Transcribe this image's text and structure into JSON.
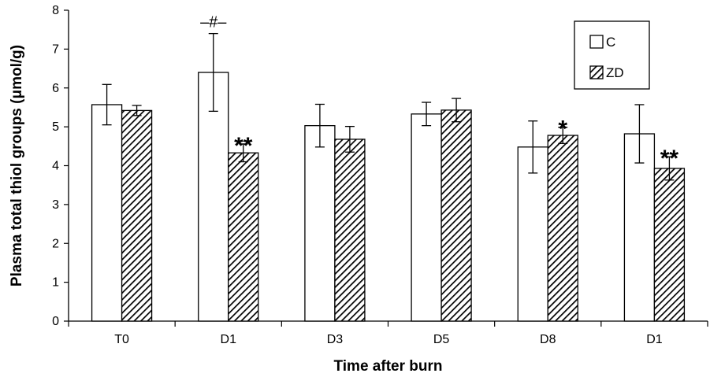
{
  "chart_data": {
    "type": "bar",
    "xlabel": "Time after burn",
    "ylabel": "Plasma total thiol groups  (μmol/g)",
    "ylim": [
      0,
      8
    ],
    "yticks": [
      "0",
      "1",
      "2",
      "3",
      "4",
      "5",
      "6",
      "7",
      "8"
    ],
    "categories": [
      "T0",
      "D1",
      "D3",
      "D5",
      "D8",
      "D1"
    ],
    "series": [
      {
        "name": "C",
        "fill": "white",
        "values": [
          5.57,
          6.4,
          5.03,
          5.33,
          4.48,
          4.82
        ],
        "errors": [
          0.52,
          1.0,
          0.55,
          0.3,
          0.67,
          0.75
        ]
      },
      {
        "name": "ZD",
        "fill": "hatched",
        "values": [
          5.42,
          4.33,
          4.68,
          5.43,
          4.78,
          3.93
        ],
        "errors": [
          0.13,
          0.23,
          0.33,
          0.3,
          0.21,
          0.3
        ]
      }
    ],
    "annotations": [
      {
        "category_index": 1,
        "series_index": 0,
        "text": "–#–"
      },
      {
        "category_index": 1,
        "series_index": 1,
        "text": "**"
      },
      {
        "category_index": 4,
        "series_index": 1,
        "text": "*"
      },
      {
        "category_index": 5,
        "series_index": 1,
        "text": "**"
      }
    ],
    "legend": {
      "position": "top-right",
      "labels": [
        "C",
        "ZD"
      ]
    },
    "grid": false,
    "colors": {
      "stroke": "#000000",
      "background": "#ffffff",
      "bar_c": "#ffffff"
    }
  }
}
